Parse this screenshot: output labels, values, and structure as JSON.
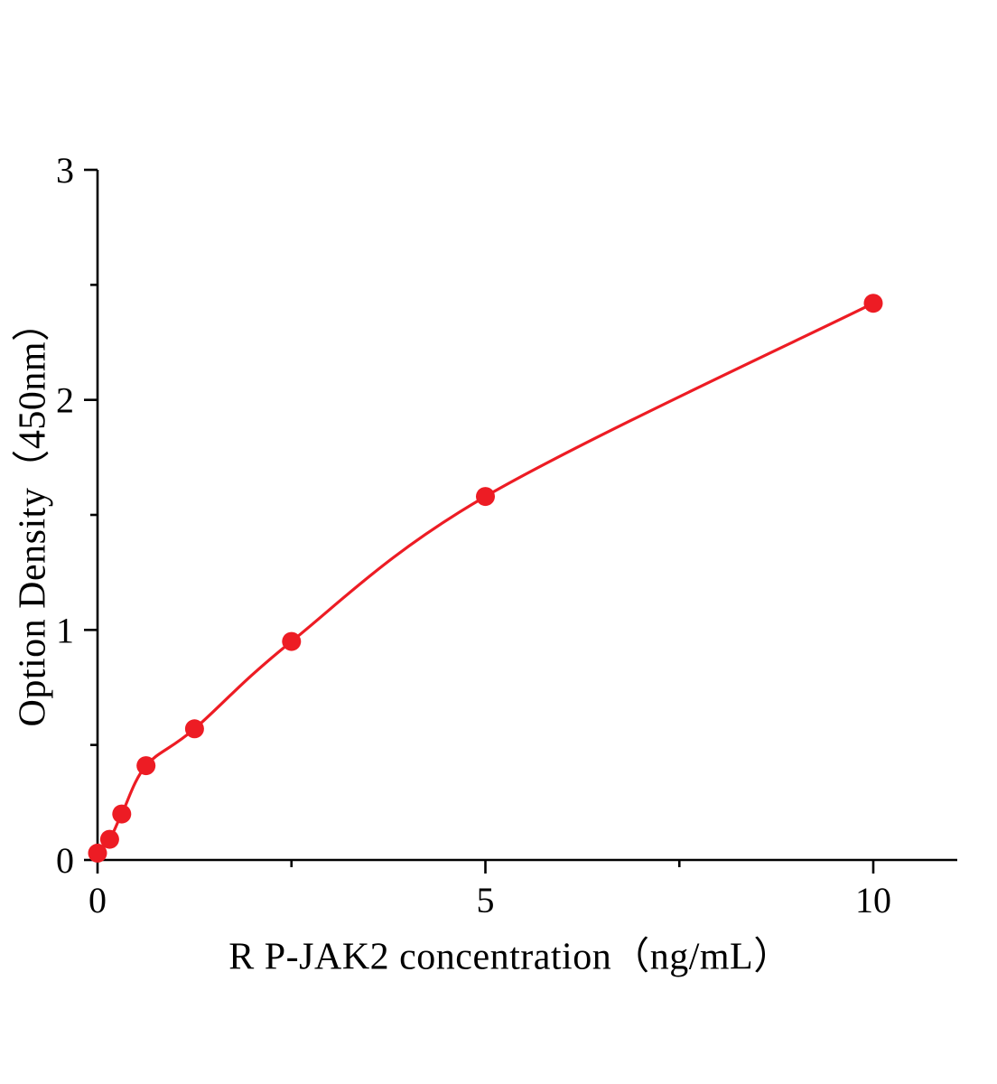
{
  "page": {
    "background": "#ffffff"
  },
  "chart_data": {
    "type": "scatter",
    "title": "",
    "xlabel": "R P-JAK2 concentration（ng/mL）",
    "ylabel": "Option Density（450nm）",
    "x": [
      0,
      0.156,
      0.3125,
      0.625,
      1.25,
      2.5,
      5,
      10
    ],
    "y": [
      0.03,
      0.09,
      0.2,
      0.41,
      0.57,
      0.95,
      1.58,
      2.42
    ],
    "xlim": [
      0,
      11.08
    ],
    "ylim": [
      0,
      3
    ],
    "x_ticks_major": [
      0,
      5,
      10
    ],
    "x_ticks_minor": [
      2.5,
      7.5
    ],
    "y_ticks_major": [
      0,
      1,
      2,
      3
    ],
    "y_ticks_minor": [
      0.5,
      1.5,
      2.5
    ],
    "series_color": "#ed1c24",
    "axis_color": "#000000",
    "marker": "circle",
    "marker_radius": 10.5,
    "line_width": 3.2,
    "curve_style": "smooth",
    "grid": false,
    "legend": "none"
  }
}
